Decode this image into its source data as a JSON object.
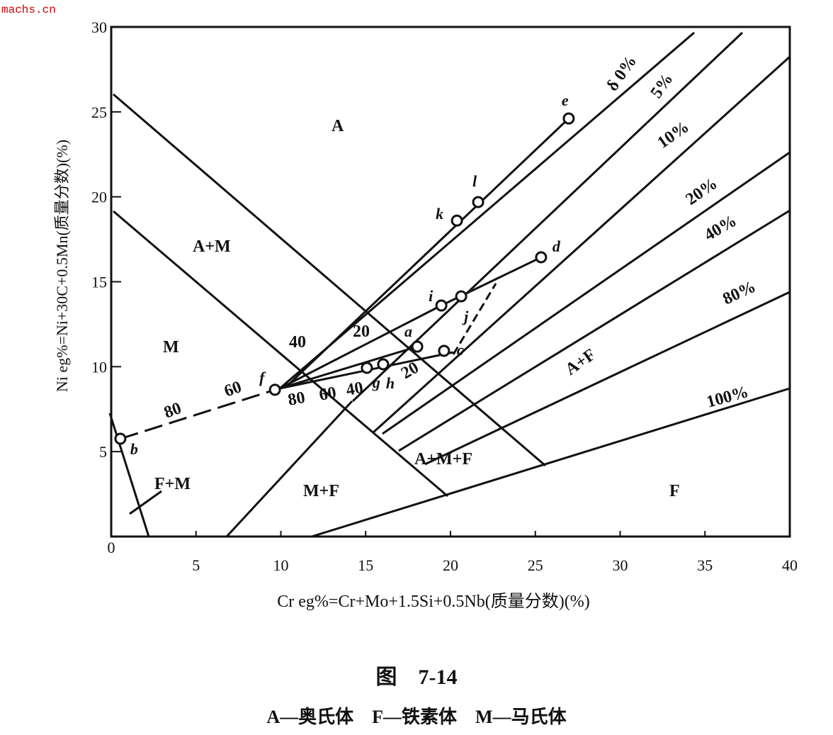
{
  "watermark": "machs.cn",
  "chart_data": {
    "type": "scatter",
    "x_label": "Cr eg%=Cr+Mo+1.5Si+0.5Nb(质量分数)(%)",
    "y_label": "Ni eg%=Ni+30C+0.5Mn(质量分数)(%)",
    "xlim": [
      0,
      40
    ],
    "ylim": [
      0,
      30
    ],
    "xticks": [
      0,
      5,
      10,
      15,
      20,
      25,
      30,
      35,
      40
    ],
    "yticks": [
      0,
      5,
      10,
      15,
      20,
      25,
      30
    ],
    "point_labels": [
      "b",
      "f",
      "g",
      "h",
      "a",
      "c",
      "i",
      "j",
      "k",
      "l",
      "d",
      "e"
    ],
    "x": [
      0.54,
      9.65,
      15.07,
      16.03,
      18.04,
      19.62,
      19.46,
      20.63,
      20.38,
      21.63,
      25.34,
      26.97
    ],
    "values": [
      5.76,
      8.64,
      9.93,
      10.14,
      11.18,
      10.93,
      13.6,
      14.14,
      18.6,
      19.69,
      16.44,
      24.61
    ],
    "annotations": [
      "A",
      "A+M",
      "M",
      "F+M",
      "M+F",
      "A+M+F",
      "A+F",
      "F",
      "δ 0%",
      "5%",
      "10%",
      "20%",
      "40%",
      "80%",
      "100%",
      "40",
      "20",
      "80",
      "60",
      "80",
      "60",
      "40",
      "20"
    ],
    "caption": "图　7-14",
    "legend_text": "A—奥氏体　F—铁素体　M—马氏体"
  }
}
